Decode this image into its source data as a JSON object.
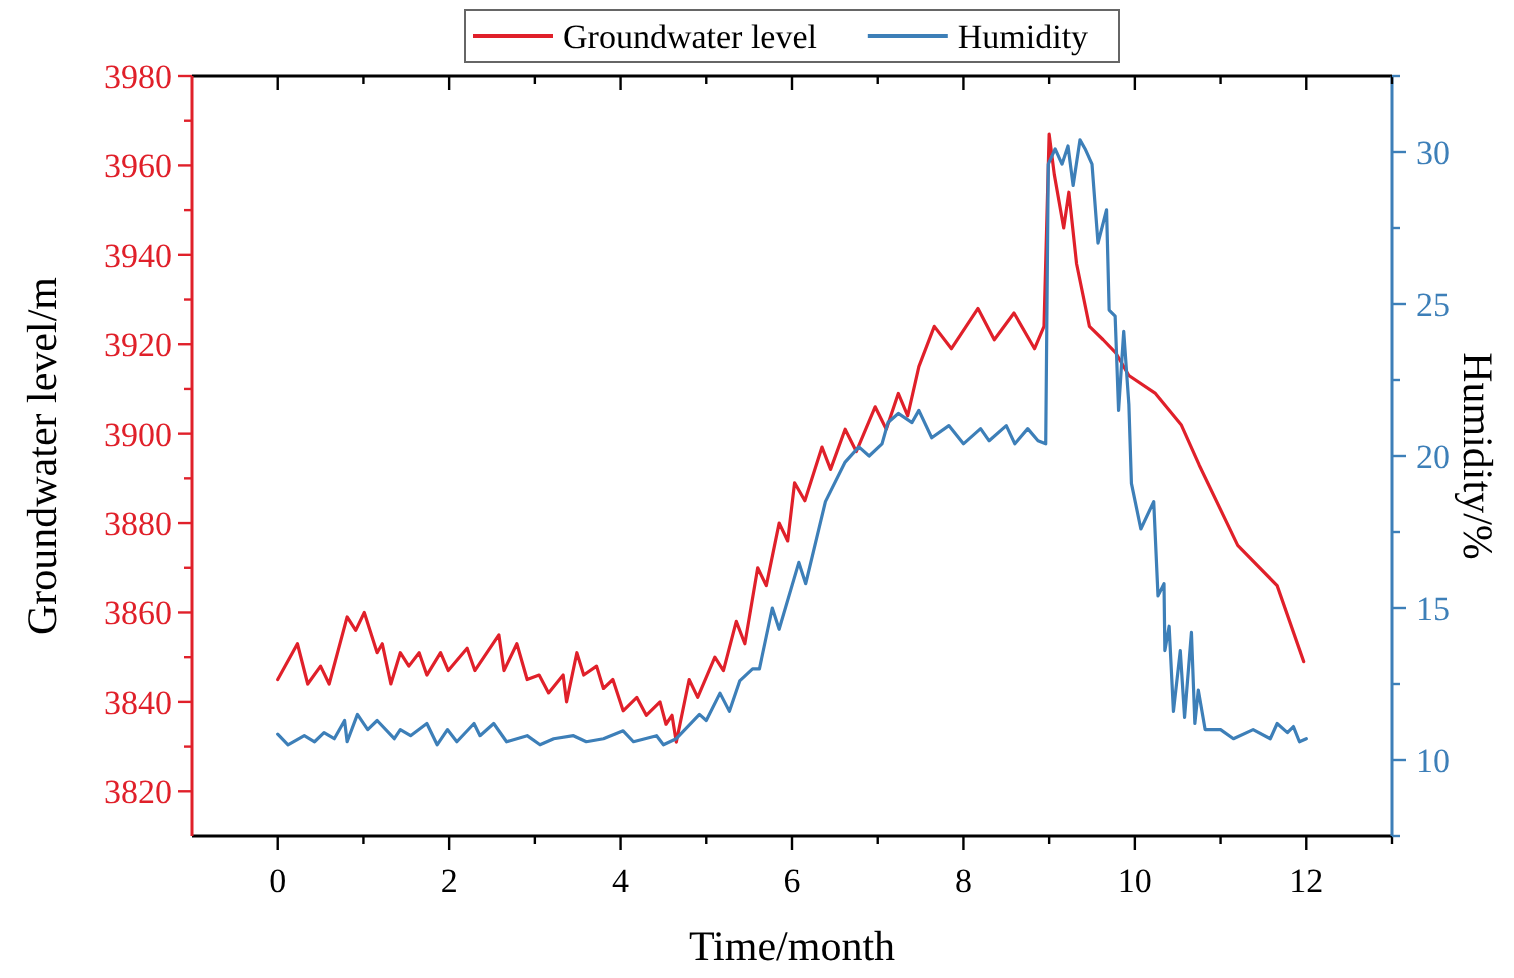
{
  "chart_data": {
    "type": "line",
    "xlabel": "Time/month",
    "ylabel": "Groundwater level/m",
    "y2label": "Humidity/%",
    "legend": "top",
    "grid": false,
    "line_style": "solid",
    "xlim": [
      -1,
      13
    ],
    "xticks": [
      0,
      {
        "value": 1,
        "label": null
      },
      2,
      {
        "value": 3,
        "label": null
      },
      4,
      {
        "value": 5,
        "label": null
      },
      6,
      {
        "value": 7,
        "label": null
      },
      8,
      {
        "value": 9,
        "label": null
      },
      10,
      {
        "value": 11,
        "label": null
      },
      12,
      {
        "value": 13,
        "label": null
      }
    ],
    "ylim": [
      3810,
      3980
    ],
    "yticks": [
      3820,
      {
        "value": 3830,
        "label": null
      },
      3840,
      {
        "value": 3850,
        "label": null
      },
      3860,
      {
        "value": 3870,
        "label": null
      },
      3880,
      {
        "value": 3890,
        "label": null
      },
      3900,
      {
        "value": 3910,
        "label": null
      },
      3920,
      {
        "value": 3930,
        "label": null
      },
      3940,
      {
        "value": 3950,
        "label": null
      },
      3960,
      {
        "value": 3970,
        "label": null
      },
      3980
    ],
    "y2lim": [
      7.5,
      32.5
    ],
    "y2ticks": [
      {
        "value": 7.5,
        "label": null
      },
      10,
      {
        "value": 12.5,
        "label": null
      },
      15,
      {
        "value": 17.5,
        "label": null
      },
      20,
      {
        "value": 22.5,
        "label": null
      },
      25,
      {
        "value": 27.5,
        "label": null
      },
      30,
      {
        "value": 32.5,
        "label": null
      }
    ],
    "series": [
      {
        "name": "Groundwater level",
        "color": "#e0202a",
        "x": [
          0,
          0.23,
          0.35,
          0.5,
          0.6,
          0.81,
          0.91,
          1.01,
          1.16,
          1.22,
          1.32,
          1.43,
          1.53,
          1.65,
          1.74,
          1.9,
          1.99,
          2.21,
          2.3,
          2.58,
          2.64,
          2.79,
          2.91,
          3.05,
          3.16,
          3.33,
          3.37,
          3.49,
          3.57,
          3.72,
          3.8,
          3.91,
          4.03,
          4.19,
          4.3,
          4.46,
          4.53,
          4.6,
          4.65,
          4.8,
          4.9,
          5.1,
          5.2,
          5.35,
          5.45,
          5.6,
          5.7,
          5.85,
          5.95,
          6.03,
          6.15,
          6.35,
          6.45,
          6.62,
          6.75,
          6.97,
          7.1,
          7.24,
          7.35,
          7.48,
          7.66,
          7.86,
          8.17,
          8.36,
          8.59,
          8.83,
          8.94,
          9.0,
          9.06,
          9.17,
          9.23,
          9.32,
          9.47,
          9.63,
          9.78,
          9.93,
          10.24,
          10.54,
          10.75,
          11.2,
          11.66,
          11.97
        ],
        "values": [
          3845,
          3853,
          3844,
          3848,
          3844,
          3859,
          3856,
          3860,
          3851,
          3853,
          3844,
          3851,
          3848,
          3851,
          3846,
          3851,
          3847,
          3852,
          3847,
          3855,
          3847,
          3853,
          3845,
          3846,
          3842,
          3846,
          3840,
          3851,
          3846,
          3848,
          3843,
          3845,
          3838,
          3841,
          3837,
          3840,
          3835,
          3837,
          3831,
          3845,
          3841,
          3850,
          3847,
          3858,
          3853,
          3870,
          3866,
          3880,
          3876,
          3889,
          3885,
          3897,
          3892,
          3901,
          3896,
          3906,
          3901,
          3909,
          3904,
          3915,
          3924,
          3919,
          3928,
          3921,
          3927,
          3919,
          3924,
          3967,
          3958,
          3946,
          3954,
          3938,
          3924,
          3921,
          3918,
          3913,
          3909,
          3902,
          3893,
          3875,
          3866,
          3849
        ]
      },
      {
        "name": "Humidity",
        "color": "#3d7fb8",
        "axis": "y2",
        "x": [
          0,
          0.12,
          0.31,
          0.43,
          0.54,
          0.66,
          0.78,
          0.81,
          0.93,
          1.05,
          1.16,
          1.36,
          1.43,
          1.55,
          1.74,
          1.86,
          1.98,
          2.09,
          2.29,
          2.36,
          2.52,
          2.67,
          2.91,
          3.06,
          3.22,
          3.45,
          3.6,
          3.8,
          4.03,
          4.15,
          4.42,
          4.5,
          4.65,
          4.92,
          5.0,
          5.16,
          5.27,
          5.39,
          5.54,
          5.62,
          5.77,
          5.85,
          6.08,
          6.16,
          6.39,
          6.62,
          6.78,
          6.9,
          7.05,
          7.12,
          7.24,
          7.4,
          7.48,
          7.63,
          7.83,
          8.0,
          8.2,
          8.3,
          8.5,
          8.6,
          8.75,
          8.87,
          8.96,
          8.99,
          9.07,
          9.15,
          9.22,
          9.28,
          9.36,
          9.42,
          9.5,
          9.57,
          9.67,
          9.7,
          9.77,
          9.81,
          9.87,
          9.93,
          9.96,
          10.07,
          10.22,
          10.27,
          10.34,
          10.35,
          10.4,
          10.45,
          10.53,
          10.58,
          10.66,
          10.7,
          10.74,
          10.82,
          11.0,
          11.15,
          11.38,
          11.58,
          11.66,
          11.78,
          11.85,
          11.92,
          12.0
        ],
        "values": [
          10.85,
          10.5,
          10.8,
          10.6,
          10.9,
          10.7,
          11.3,
          10.6,
          11.5,
          11.0,
          11.3,
          10.7,
          11.0,
          10.8,
          11.2,
          10.5,
          11.0,
          10.6,
          11.2,
          10.8,
          11.2,
          10.6,
          10.8,
          10.5,
          10.7,
          10.8,
          10.6,
          10.7,
          10.96,
          10.6,
          10.8,
          10.5,
          10.7,
          11.5,
          11.3,
          12.2,
          11.6,
          12.6,
          13.0,
          13.0,
          15.0,
          14.3,
          16.5,
          15.8,
          18.5,
          19.8,
          20.3,
          20.0,
          20.4,
          21.1,
          21.4,
          21.1,
          21.5,
          20.6,
          21.0,
          20.4,
          20.9,
          20.5,
          21.0,
          20.4,
          20.9,
          20.5,
          20.4,
          29.6,
          30.1,
          29.6,
          30.2,
          28.9,
          30.4,
          30.1,
          29.6,
          27.0,
          28.1,
          24.8,
          24.6,
          21.5,
          24.1,
          21.7,
          19.1,
          17.6,
          18.5,
          15.4,
          15.8,
          13.6,
          14.4,
          11.6,
          13.6,
          11.4,
          14.2,
          11.2,
          12.3,
          11.0,
          11.0,
          10.7,
          11.0,
          10.7,
          11.2,
          10.9,
          11.1,
          10.6,
          10.7
        ]
      }
    ]
  }
}
